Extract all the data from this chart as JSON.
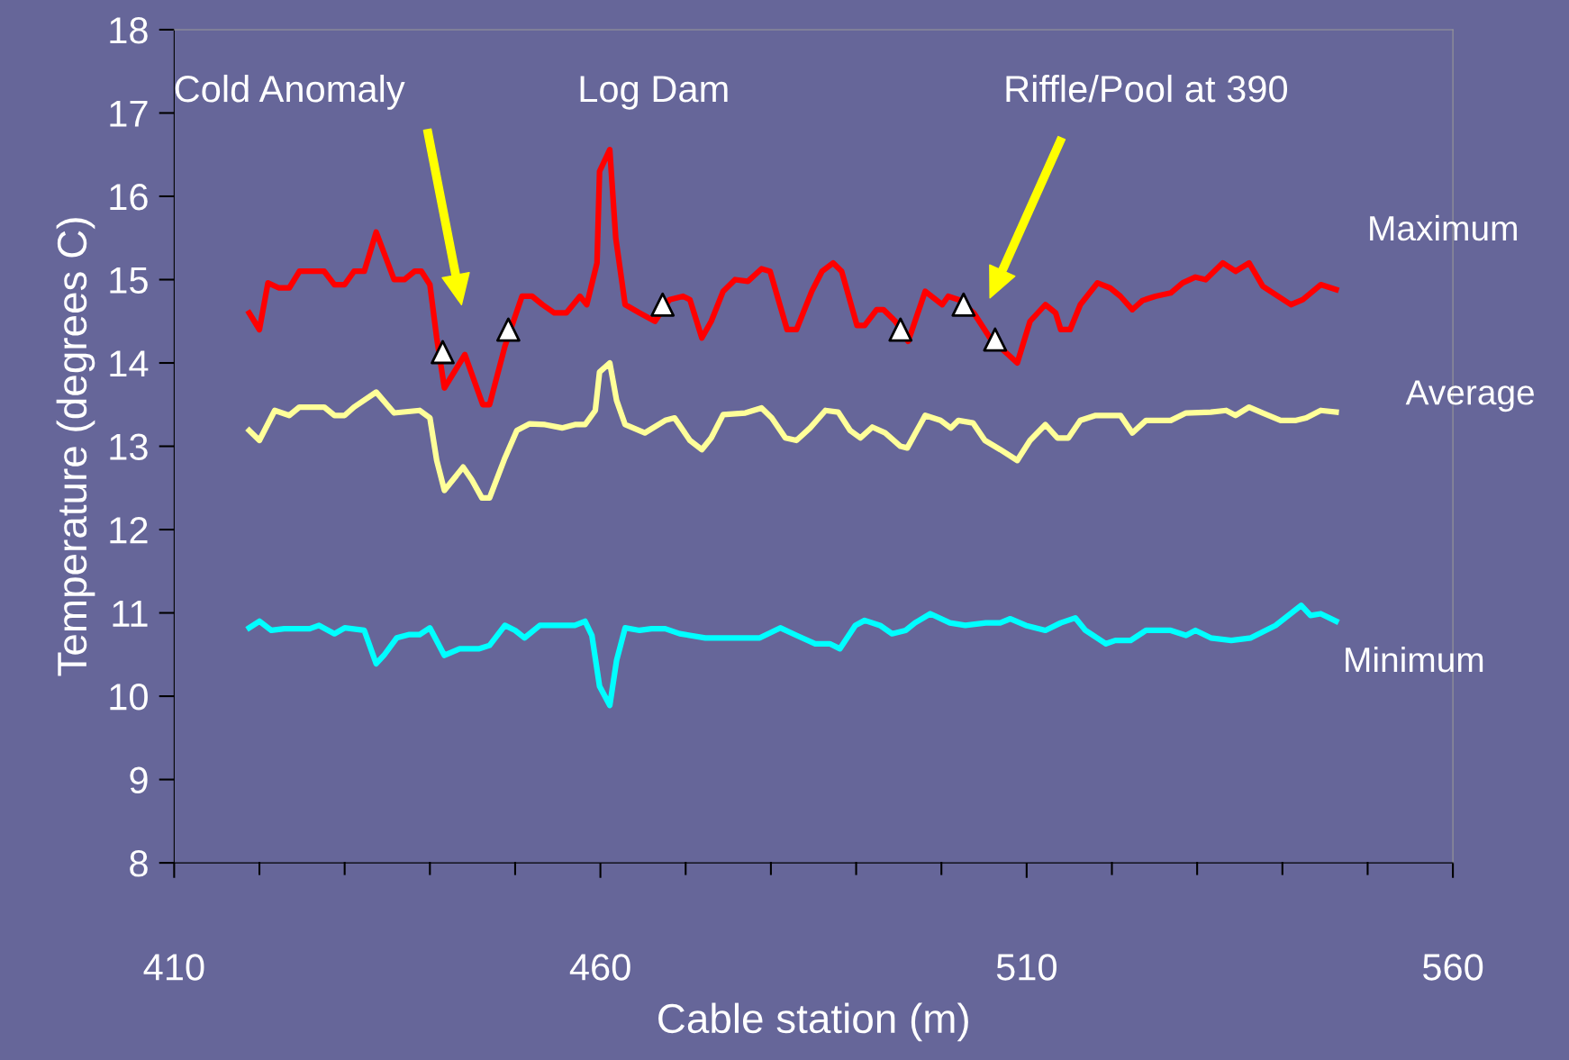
{
  "chart_data": {
    "type": "line",
    "xlabel": "Cable station (m)",
    "ylabel": "Temperature (degrees C)",
    "xlim": [
      410,
      560
    ],
    "ylim": [
      8,
      18
    ],
    "xticks": [
      410,
      {
        "value": 420,
        "label": null
      },
      {
        "value": 430,
        "label": null
      },
      {
        "value": 440,
        "label": null
      },
      {
        "value": 450,
        "label": null
      },
      460,
      {
        "value": 470,
        "label": null
      },
      {
        "value": 480,
        "label": null
      },
      {
        "value": 490,
        "label": null
      },
      {
        "value": 500,
        "label": null
      },
      510,
      {
        "value": 520,
        "label": null
      },
      {
        "value": 530,
        "label": null
      },
      {
        "value": 540,
        "label": null
      },
      {
        "value": 550,
        "label": null
      },
      560
    ],
    "yticks": [
      8,
      9,
      10,
      11,
      12,
      13,
      14,
      15,
      16,
      17,
      18
    ],
    "grid": false,
    "legend": false,
    "marker": "none",
    "line_style": "solid",
    "series": [
      {
        "name": "Maximum",
        "color": "#ff0000",
        "x": [
          418.8,
          420,
          421,
          422.3,
          423.5,
          424.7,
          427.6,
          428.8,
          430,
          431.1,
          432.3,
          433.7,
          435.8,
          437,
          438.2,
          439,
          440,
          440.8,
          441.7,
          444.1,
          446.2,
          447,
          448.8,
          450.8,
          452,
          453.2,
          454.6,
          456,
          457.6,
          458.4,
          459.6,
          459.9,
          461.1,
          461.8,
          462.9,
          464.6,
          466.4,
          468.1,
          469.7,
          470.5,
          471.9,
          473,
          474.4,
          475.8,
          477.3,
          478.9,
          479.9,
          481.9,
          483,
          484.8,
          486,
          487.3,
          488.3,
          490.1,
          491,
          492.4,
          493.2,
          494.6,
          496.1,
          498.1,
          500.1,
          500.8,
          502,
          503.8,
          505.7,
          508.9,
          510.4,
          512.2,
          513.4,
          514,
          515.1,
          516.3,
          518.3,
          519.8,
          521,
          522.4,
          523.6,
          525.1,
          526.9,
          528.3,
          529.8,
          531,
          533,
          534.5,
          536.1,
          537.7,
          539.2,
          541,
          542.4,
          544.5,
          546.3
        ],
        "values": [
          14.6,
          14.4,
          14.96,
          14.9,
          14.9,
          15.1,
          15.1,
          14.94,
          14.94,
          15.1,
          15.1,
          15.57,
          15.0,
          15.0,
          15.1,
          15.1,
          14.94,
          14.3,
          13.7,
          14.1,
          13.5,
          13.5,
          14.2,
          14.8,
          14.8,
          14.7,
          14.6,
          14.6,
          14.8,
          14.7,
          15.2,
          16.3,
          16.56,
          15.5,
          14.7,
          14.6,
          14.5,
          14.76,
          14.8,
          14.76,
          14.3,
          14.5,
          14.86,
          15.0,
          14.98,
          15.13,
          15.1,
          14.4,
          14.4,
          14.86,
          15.1,
          15.2,
          15.1,
          14.45,
          14.45,
          14.64,
          14.64,
          14.5,
          14.26,
          14.86,
          14.7,
          14.8,
          14.76,
          14.6,
          14.3,
          14.0,
          14.5,
          14.7,
          14.6,
          14.4,
          14.4,
          14.7,
          14.96,
          14.9,
          14.8,
          14.64,
          14.75,
          14.8,
          14.84,
          14.96,
          15.03,
          15.0,
          15.2,
          15.1,
          15.2,
          14.92,
          14.82,
          14.7,
          14.76,
          14.94,
          14.88
        ]
      },
      {
        "name": "Average",
        "color": "#ffff99",
        "x": [
          418.8,
          420,
          421.8,
          423.5,
          424.7,
          427.6,
          428.8,
          430,
          431.1,
          433.7,
          435.8,
          438.8,
          440,
          440.8,
          441.7,
          443.9,
          444.9,
          446.1,
          447,
          448.8,
          450.2,
          451.7,
          453.5,
          455.5,
          457,
          458.2,
          459.4,
          459.9,
          461.1,
          461.9,
          462.9,
          465.2,
          467.6,
          468.7,
          470.5,
          471.9,
          473,
          474.4,
          477,
          478.9,
          480.1,
          481.7,
          483,
          484.6,
          486.4,
          487.9,
          489.3,
          490.5,
          491.9,
          493.4,
          495.2,
          496,
          498.1,
          499.9,
          501.1,
          502,
          503.7,
          505.1,
          506.9,
          508.9,
          510.4,
          512.2,
          513.6,
          514.9,
          516.3,
          518.1,
          521,
          522.4,
          524,
          526.9,
          528.7,
          531.6,
          533.4,
          534.5,
          536.1,
          537.7,
          539.8,
          541.6,
          542.8,
          544.5,
          546.3
        ],
        "values": [
          13.19,
          13.07,
          13.43,
          13.37,
          13.47,
          13.47,
          13.37,
          13.37,
          13.47,
          13.65,
          13.4,
          13.43,
          13.34,
          12.83,
          12.47,
          12.75,
          12.6,
          12.38,
          12.38,
          12.86,
          13.19,
          13.27,
          13.26,
          13.22,
          13.26,
          13.26,
          13.43,
          13.89,
          14.0,
          13.55,
          13.26,
          13.16,
          13.31,
          13.34,
          13.07,
          12.96,
          13.1,
          13.38,
          13.4,
          13.46,
          13.34,
          13.1,
          13.07,
          13.22,
          13.43,
          13.41,
          13.19,
          13.1,
          13.23,
          13.16,
          13.0,
          12.98,
          13.37,
          13.31,
          13.22,
          13.31,
          13.28,
          13.07,
          12.96,
          12.83,
          13.07,
          13.26,
          13.1,
          13.1,
          13.31,
          13.37,
          13.37,
          13.16,
          13.31,
          13.31,
          13.4,
          13.41,
          13.43,
          13.37,
          13.47,
          13.4,
          13.31,
          13.31,
          13.34,
          13.43,
          13.41
        ]
      },
      {
        "name": "Minimum",
        "color": "#00ffff",
        "x": [
          418.8,
          420,
          421.4,
          422.9,
          425.9,
          427,
          428.8,
          430,
          432.3,
          433.7,
          434.6,
          436.1,
          437.6,
          438.8,
          440,
          441.7,
          443.5,
          445.8,
          447,
          448.8,
          450,
          451.1,
          452.9,
          455.2,
          457,
          458.2,
          459,
          459.9,
          461.1,
          461.9,
          462.9,
          464.6,
          466,
          467.6,
          469.3,
          472.3,
          475.2,
          478.7,
          481.1,
          483,
          485.2,
          486.9,
          488.1,
          489.9,
          491,
          492.8,
          494.2,
          495.8,
          496.9,
          498.7,
          501,
          502.8,
          505.2,
          506.9,
          508.1,
          509.9,
          512.2,
          514,
          515.7,
          516.9,
          519.3,
          520.4,
          522.2,
          524,
          526.9,
          528.7,
          529.8,
          531.6,
          534,
          536.3,
          539.2,
          542.2,
          543.3,
          544.5,
          546.3
        ],
        "values": [
          10.82,
          10.9,
          10.79,
          10.81,
          10.81,
          10.85,
          10.75,
          10.82,
          10.79,
          10.39,
          10.49,
          10.7,
          10.74,
          10.74,
          10.82,
          10.49,
          10.57,
          10.57,
          10.61,
          10.85,
          10.79,
          10.7,
          10.85,
          10.85,
          10.85,
          10.9,
          10.73,
          10.12,
          9.89,
          10.43,
          10.82,
          10.79,
          10.81,
          10.81,
          10.75,
          10.7,
          10.7,
          10.7,
          10.82,
          10.73,
          10.63,
          10.63,
          10.57,
          10.85,
          10.91,
          10.85,
          10.75,
          10.79,
          10.88,
          10.99,
          10.88,
          10.85,
          10.88,
          10.88,
          10.93,
          10.85,
          10.79,
          10.88,
          10.94,
          10.79,
          10.63,
          10.67,
          10.67,
          10.79,
          10.79,
          10.73,
          10.79,
          10.7,
          10.67,
          10.7,
          10.85,
          11.09,
          10.97,
          10.99,
          10.9
        ]
      },
      {
        "type": "scatter",
        "marker": "triangle",
        "color": "#ffffff",
        "x": [
          441.5,
          449.2,
          467.3,
          495.2,
          502.6,
          506.3
        ],
        "values": [
          14.13,
          14.4,
          14.7,
          14.4,
          14.7,
          14.28
        ]
      }
    ],
    "annotations": [
      "Cold Anomaly",
      "Log Dam",
      "Riffle/Pool at 390"
    ]
  }
}
